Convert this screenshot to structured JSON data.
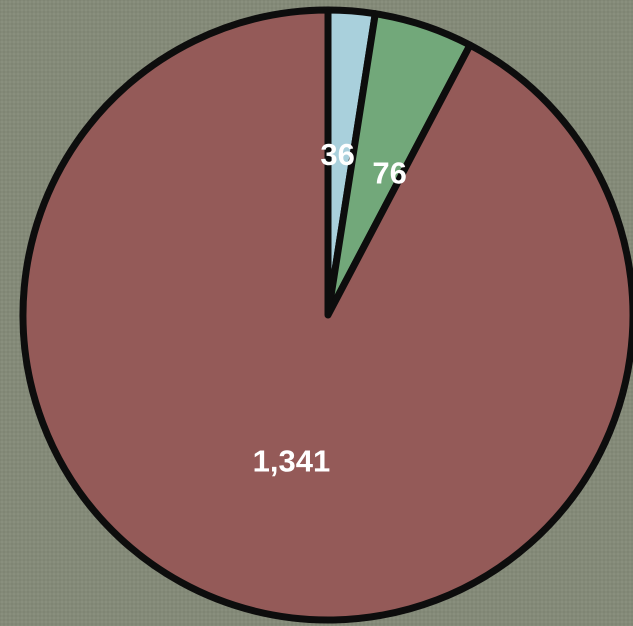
{
  "chart_data": {
    "type": "pie",
    "values": [
      36,
      76,
      1341
    ],
    "data_labels": [
      "36",
      "76",
      "1,341"
    ],
    "colors": [
      "#a9d0dc",
      "#72a87a",
      "#945a58"
    ],
    "start_angle_deg": 0,
    "direction": "clockwise",
    "legend": "none",
    "title": ""
  }
}
